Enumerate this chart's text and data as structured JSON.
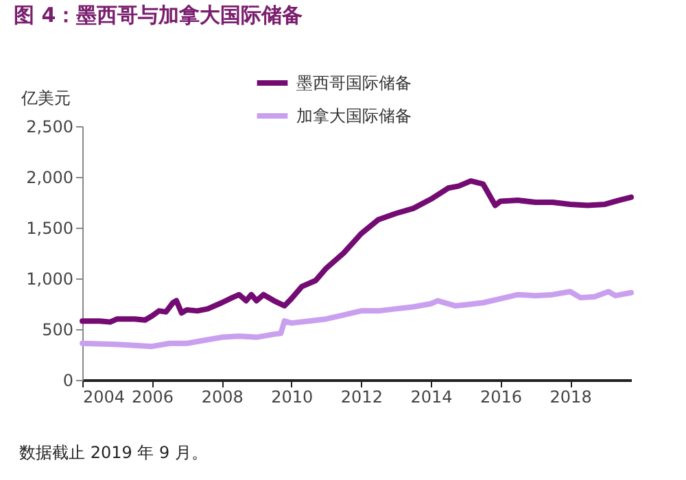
{
  "chart_data": {
    "type": "line",
    "title": "图 4：墨西哥与加拿大国际储备",
    "ylabel": "亿美元",
    "annotations": [
      "数据截止 2019 年 9 月。"
    ],
    "legend": "top",
    "grid": false,
    "line_style": "solid",
    "marker": "none",
    "xlim": [
      2004,
      2019.75
    ],
    "xticks": [
      2004,
      2006,
      2008,
      2010,
      2012,
      2014,
      2016,
      2018
    ],
    "ylim": [
      0,
      2500
    ],
    "yticks": [
      0,
      500,
      {
        "value": 1000,
        "label": "1,000"
      },
      {
        "value": 1500,
        "label": "1,500"
      },
      {
        "value": 2000,
        "label": "2,000"
      },
      {
        "value": 2500,
        "label": "2,500"
      }
    ],
    "series": [
      {
        "name": "墨西哥国际储备",
        "color": "#730b72",
        "x": [
          2004.0,
          2004.5,
          2004.8,
          2005.0,
          2005.5,
          2005.8,
          2006.0,
          2006.2,
          2006.4,
          2006.6,
          2006.7,
          2006.85,
          2007.0,
          2007.3,
          2007.6,
          2008.0,
          2008.3,
          2008.5,
          2008.7,
          2008.85,
          2009.0,
          2009.2,
          2009.5,
          2009.8,
          2010.0,
          2010.3,
          2010.7,
          2011.0,
          2011.5,
          2012.0,
          2012.5,
          2013.0,
          2013.5,
          2014.0,
          2014.5,
          2014.8,
          2015.15,
          2015.5,
          2015.85,
          2016.0,
          2016.5,
          2017.0,
          2017.5,
          2018.0,
          2018.5,
          2019.0,
          2019.4,
          2019.75
        ],
        "values": [
          580,
          580,
          570,
          600,
          600,
          590,
          630,
          680,
          670,
          760,
          780,
          660,
          690,
          680,
          700,
          760,
          810,
          840,
          780,
          840,
          780,
          840,
          780,
          730,
          800,
          920,
          980,
          1100,
          1250,
          1440,
          1580,
          1640,
          1690,
          1780,
          1890,
          1910,
          1960,
          1930,
          1720,
          1760,
          1770,
          1750,
          1750,
          1730,
          1720,
          1730,
          1770,
          1800
        ]
      },
      {
        "name": "加拿大国际储备",
        "color": "#c9a0f0",
        "x": [
          2004.0,
          2005.0,
          2006.0,
          2006.5,
          2007.0,
          2007.5,
          2008.0,
          2008.5,
          2009.0,
          2009.5,
          2009.7,
          2009.8,
          2010.0,
          2010.5,
          2011.0,
          2011.5,
          2012.0,
          2012.5,
          2013.0,
          2013.5,
          2014.0,
          2014.2,
          2014.7,
          2015.0,
          2015.5,
          2016.0,
          2016.5,
          2017.0,
          2017.5,
          2018.0,
          2018.3,
          2018.7,
          2019.1,
          2019.3,
          2019.75
        ],
        "values": [
          360,
          350,
          330,
          360,
          360,
          390,
          420,
          430,
          420,
          450,
          460,
          580,
          560,
          580,
          600,
          640,
          680,
          680,
          700,
          720,
          750,
          780,
          730,
          740,
          760,
          800,
          840,
          830,
          840,
          870,
          810,
          820,
          870,
          830,
          860
        ]
      }
    ]
  }
}
